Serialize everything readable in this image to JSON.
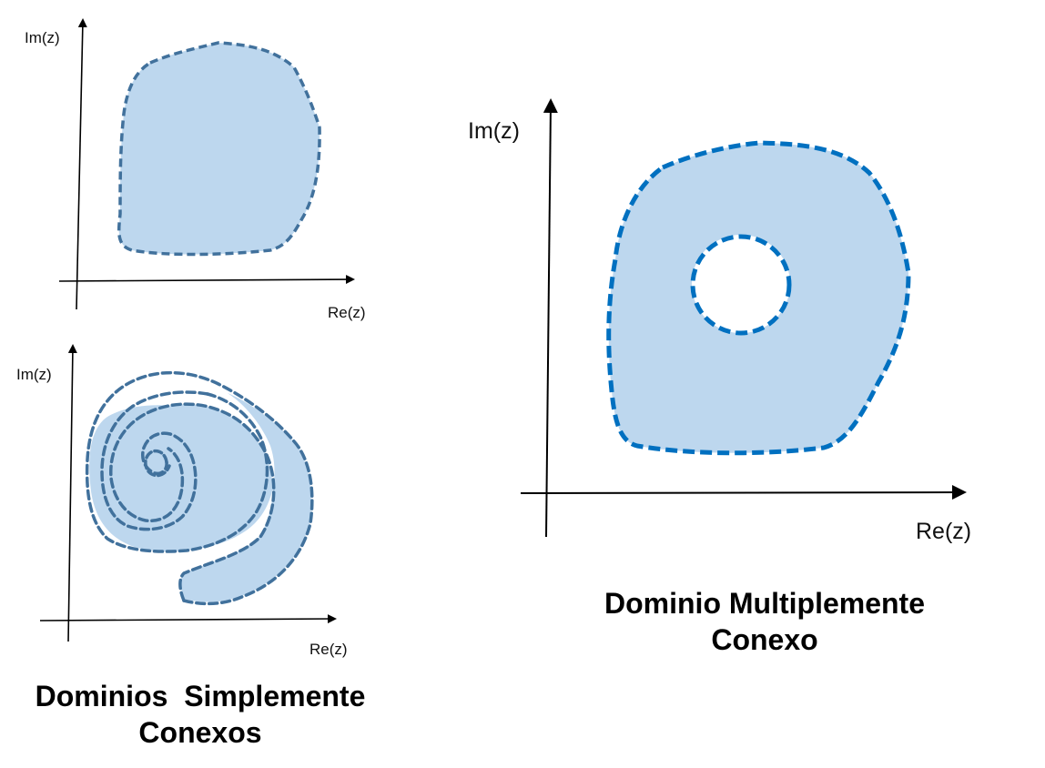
{
  "panels": {
    "top_left": {
      "x_label": "Re(z)",
      "y_label": "Im(z)"
    },
    "bottom_left": {
      "x_label": "Re(z)",
      "y_label": "Im(z)"
    },
    "right": {
      "x_label": "Re(z)",
      "y_label": "Im(z)"
    }
  },
  "captions": {
    "simply_connected": {
      "line1": "Dominios  Simplemente",
      "line2": "Conexos"
    },
    "multiply_connected": {
      "line1": "Dominio Multiplemente",
      "line2": "Conexo"
    }
  },
  "colors": {
    "fill": "#bdd7ee",
    "boundary_left": "#41719c",
    "boundary_right": "#0070c0",
    "axis": "#000000"
  }
}
